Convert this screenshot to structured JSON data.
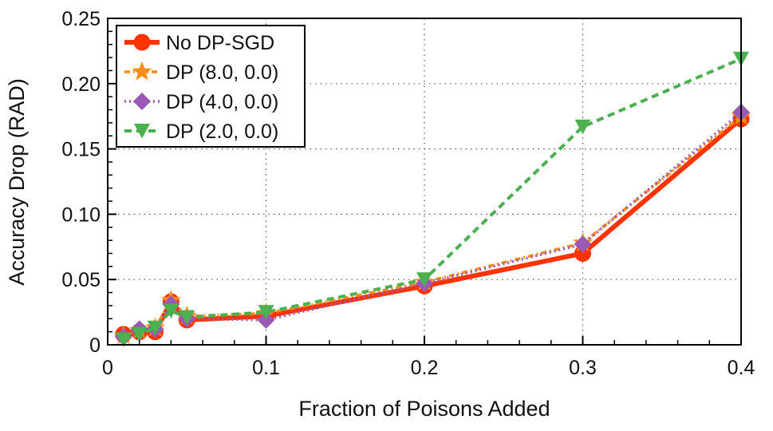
{
  "chart_data": {
    "type": "line",
    "xlabel": "Fraction of Poisons Added",
    "ylabel": "Accuracy Drop (RAD)",
    "xlim": [
      0,
      0.4
    ],
    "ylim": [
      0,
      0.25
    ],
    "x_ticks": [
      0,
      0.1,
      0.2,
      0.3,
      0.4
    ],
    "x_tick_labels": [
      "0",
      "0.1",
      "0.2",
      "0.3",
      "0.4"
    ],
    "y_ticks": [
      0,
      0.05,
      0.1,
      0.15,
      0.2,
      0.25
    ],
    "y_tick_labels": [
      "0",
      "0.05",
      "0.10",
      "0.15",
      "0.20",
      "0.25"
    ],
    "grid": "dotted",
    "legend_position": "top-left",
    "x": [
      0.01,
      0.02,
      0.03,
      0.04,
      0.05,
      0.1,
      0.2,
      0.3,
      0.4
    ],
    "series": [
      {
        "name": "No DP-SGD",
        "values": [
          0.008,
          0.01,
          0.01,
          0.033,
          0.019,
          0.022,
          0.045,
          0.07,
          0.173
        ],
        "color": "#ff3300",
        "marker": "circle",
        "line_style": "solid"
      },
      {
        "name": "DP (8.0, 0.0)",
        "values": [
          0.007,
          0.011,
          0.013,
          0.034,
          0.022,
          0.024,
          0.048,
          0.078,
          0.175
        ],
        "color": "#ff8c1a",
        "marker": "star",
        "line_style": "dash-dot"
      },
      {
        "name": "DP (4.0, 0.0)",
        "values": [
          0.006,
          0.012,
          0.012,
          0.031,
          0.02,
          0.019,
          0.047,
          0.077,
          0.178
        ],
        "color": "#9b59b6",
        "marker": "diamond",
        "line_style": "dotted"
      },
      {
        "name": "DP (2.0, 0.0)",
        "values": [
          0.004,
          0.008,
          0.013,
          0.026,
          0.021,
          0.025,
          0.05,
          0.167,
          0.219
        ],
        "color": "#4caf50",
        "marker": "triangle-down",
        "line_style": "dashed"
      }
    ]
  }
}
